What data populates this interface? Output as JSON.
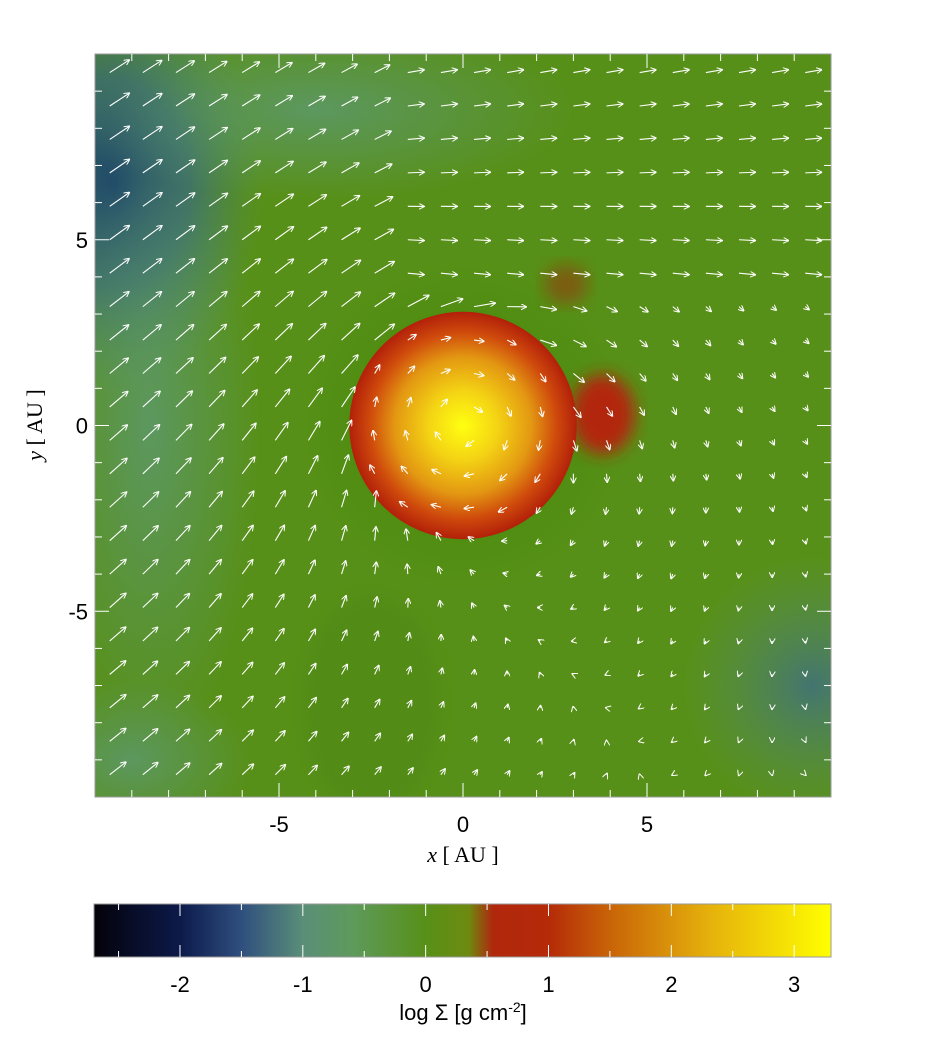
{
  "chart_data": {
    "type": "heatmap",
    "description_type": "surface density map with velocity vector field",
    "title": "",
    "xlabel_italic": "x",
    "xlabel_rest": " [ AU ]",
    "ylabel_italic": "y",
    "ylabel_rest": " [ AU ]",
    "xlim": [
      -10,
      10
    ],
    "ylim": [
      -10,
      10
    ],
    "x_ticks": [
      -5,
      0,
      5
    ],
    "y_ticks": [
      -5,
      0,
      5
    ],
    "x_tick_labels": [
      "-5",
      "0",
      "5"
    ],
    "y_tick_labels": [
      "-5",
      "0",
      "5"
    ],
    "colorbar": {
      "label_prefix": "log Σ [g cm",
      "label_sup": "-2",
      "label_suffix": "]",
      "range": [
        -2.7,
        3.3
      ],
      "ticks": [
        -2,
        -1,
        0,
        1,
        2,
        3
      ],
      "tick_labels": [
        "-2",
        "-1",
        "0",
        "1",
        "2",
        "3"
      ],
      "colormap": [
        {
          "v": -2.7,
          "color": "#04020a"
        },
        {
          "v": -2.0,
          "color": "#0c1a4a"
        },
        {
          "v": -1.5,
          "color": "#2f4f7e"
        },
        {
          "v": -1.0,
          "color": "#5a8e78"
        },
        {
          "v": -0.6,
          "color": "#5e9a5c"
        },
        {
          "v": 0.0,
          "color": "#579018"
        },
        {
          "v": 0.35,
          "color": "#6e8a10"
        },
        {
          "v": 0.55,
          "color": "#b0270c"
        },
        {
          "v": 1.0,
          "color": "#b52a08"
        },
        {
          "v": 1.5,
          "color": "#c86408"
        },
        {
          "v": 2.3,
          "color": "#e5b00c"
        },
        {
          "v": 3.3,
          "color": "#ffff00"
        }
      ]
    },
    "density_features": {
      "background": -0.2,
      "central_clump": {
        "center": [
          0,
          0
        ],
        "radius_au": 3.0,
        "peak": 3.1,
        "edge": 0.9
      },
      "low_density_regions": [
        {
          "center": [
            -9.5,
            6.5
          ],
          "value": -1.7
        },
        {
          "center": [
            9.5,
            -7
          ],
          "value": -1.1
        },
        {
          "center": [
            -9,
            -9
          ],
          "value": -1.0
        }
      ]
    },
    "vectors": {
      "color": "#ffffff",
      "grid_spacing_au": 0.9,
      "pattern": "inflow from upper-left, rotating flow around central clump"
    }
  }
}
